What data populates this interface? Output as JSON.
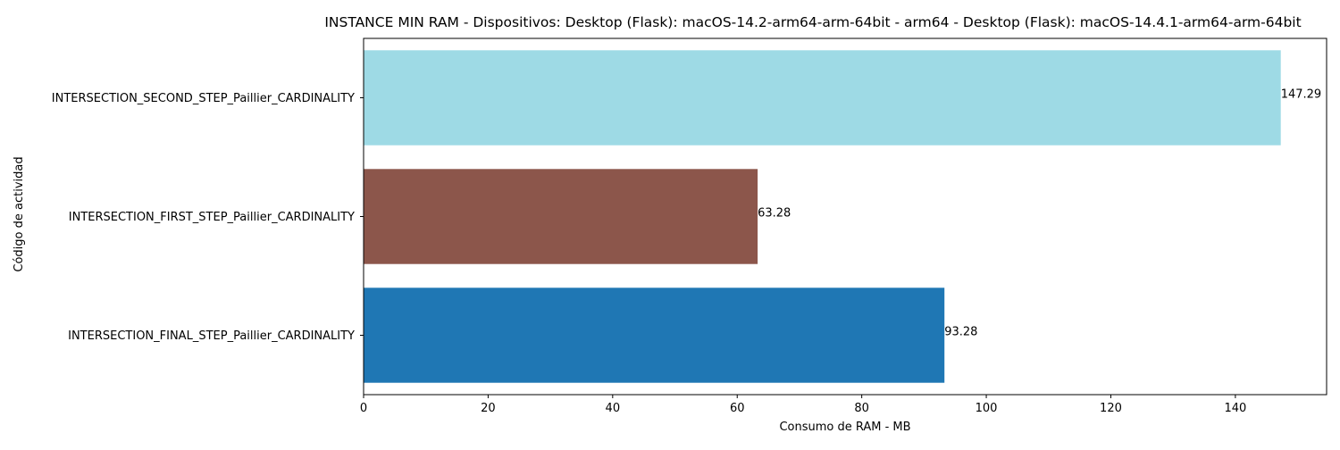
{
  "chart_data": {
    "type": "bar",
    "orientation": "horizontal",
    "title": "INSTANCE MIN RAM - Dispositivos: Desktop (Flask): macOS-14.2-arm64-arm-64bit - arm64 - Desktop (Flask): macOS-14.4.1-arm64-arm-64bit",
    "xlabel": "Consumo de RAM - MB",
    "ylabel": "Código de actividad",
    "categories": [
      "INTERSECTION_FINAL_STEP_Paillier_CARDINALITY",
      "INTERSECTION_FIRST_STEP_Paillier_CARDINALITY",
      "INTERSECTION_SECOND_STEP_Paillier_CARDINALITY"
    ],
    "values": [
      93.28,
      63.28,
      147.29
    ],
    "value_labels": [
      "93.28",
      "63.28",
      "147.29"
    ],
    "colors": [
      "#1f77b4",
      "#8c564b",
      "#9edae5"
    ],
    "xlim": [
      0,
      154.65
    ],
    "xticks": [
      0,
      20,
      40,
      60,
      80,
      100,
      120,
      140
    ],
    "grid": false,
    "legend": "none"
  }
}
